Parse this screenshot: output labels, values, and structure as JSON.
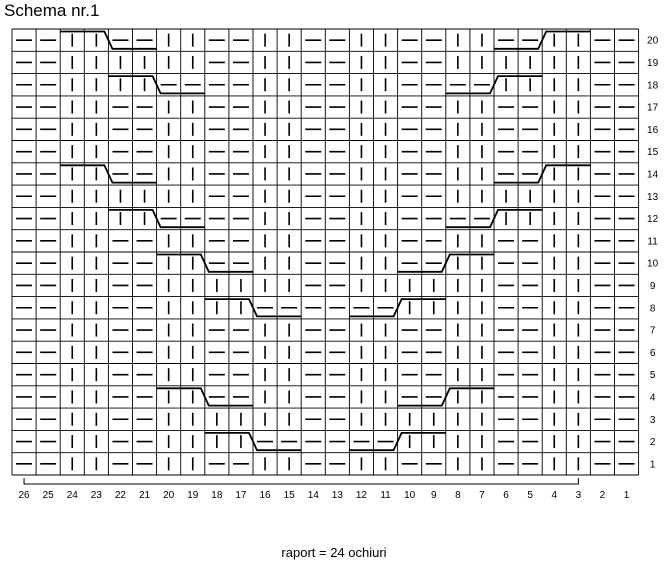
{
  "title": "Schema nr.1",
  "repeat_label": "raport = 24 ochiuri",
  "grid": {
    "columns": 26,
    "rows": 20,
    "column_numbers": [
      26,
      25,
      24,
      23,
      22,
      21,
      20,
      19,
      18,
      17,
      16,
      15,
      14,
      13,
      12,
      11,
      10,
      9,
      8,
      7,
      6,
      5,
      4,
      3,
      2,
      1
    ],
    "row_numbers": [
      20,
      19,
      18,
      17,
      16,
      15,
      14,
      13,
      12,
      11,
      10,
      9,
      8,
      7,
      6,
      5,
      4,
      3,
      2,
      1
    ],
    "repeat": {
      "from_column": 26,
      "to_column": 3
    }
  },
  "legend_symbols": {
    "knit": "|",
    "purl": "—"
  },
  "rows": [
    {
      "row": 20,
      "cells": "PPKKPPKKPPKKPPKKPPKKPPKKPP"
    },
    {
      "row": 19,
      "cells": "PPKKKKKKPPKKPPKKPPKKKKKKPP"
    },
    {
      "row": 18,
      "cells": "PPKKKKPPPPKKPPKKPPPPKKKKPP"
    },
    {
      "row": 17,
      "cells": "PPKKPPKKPPKKPPKKPPKKPPKKPP"
    },
    {
      "row": 16,
      "cells": "PPKKPPKKPPKKPPKKPPKKPPKKPP"
    },
    {
      "row": 15,
      "cells": "PPKKPPKKPPKKPPKKPPKKPPKKPP"
    },
    {
      "row": 14,
      "cells": "PPKKPPKKPPKKPPKKPPKKPPKKPP"
    },
    {
      "row": 13,
      "cells": "PPKKKKKKPPKKPPKKPPKKKKKKPP"
    },
    {
      "row": 12,
      "cells": "PPKKKKPPPPKKPPKKPPPPKKKKPP"
    },
    {
      "row": 11,
      "cells": "PPKKPPKKPPKKPPKKPPKKPPKKPP"
    },
    {
      "row": 10,
      "cells": "PPKKPPKKPPKKPPKKPPKKPPKKPP"
    },
    {
      "row": 9,
      "cells": "PPKKPPKKKKKKPPKKKKKKPPKKPP"
    },
    {
      "row": 8,
      "cells": "PPKKPPKKKKPPPPPPKKKKPPKKPP"
    },
    {
      "row": 7,
      "cells": "PPKKPPKKPPKKPPKKPPKKPPKKPP"
    },
    {
      "row": 6,
      "cells": "PPKKPPKKPPKKPPKKPPKKPPKKPP"
    },
    {
      "row": 5,
      "cells": "PPKKPPKKPPKKPPKKPPKKPPKKPP"
    },
    {
      "row": 4,
      "cells": "PPKKPPKKPPKKPPKKPPKKPPKKPP"
    },
    {
      "row": 3,
      "cells": "PPKKPPKKKKKKPPKKKKKKPPKKPP"
    },
    {
      "row": 2,
      "cells": "PPKKPPKKKKPPPPPPKKKKPPKKPP"
    },
    {
      "row": 1,
      "cells": "PPKKPPKKPPKKPPKKPPKKPPKKPP"
    }
  ],
  "cables": [
    {
      "row": 20,
      "direction": "down-right",
      "from_column": 24,
      "to_column": 21
    },
    {
      "row": 20,
      "direction": "up-right",
      "from_column": 6,
      "to_column": 3
    },
    {
      "row": 18,
      "direction": "down-right",
      "from_column": 22,
      "to_column": 19
    },
    {
      "row": 18,
      "direction": "up-right",
      "from_column": 8,
      "to_column": 5
    },
    {
      "row": 14,
      "direction": "down-right",
      "from_column": 24,
      "to_column": 21
    },
    {
      "row": 14,
      "direction": "up-right",
      "from_column": 6,
      "to_column": 3
    },
    {
      "row": 12,
      "direction": "down-right",
      "from_column": 22,
      "to_column": 19
    },
    {
      "row": 12,
      "direction": "up-right",
      "from_column": 8,
      "to_column": 5
    },
    {
      "row": 10,
      "direction": "down-right",
      "from_column": 20,
      "to_column": 17
    },
    {
      "row": 10,
      "direction": "up-right",
      "from_column": 10,
      "to_column": 7
    },
    {
      "row": 8,
      "direction": "down-right",
      "from_column": 18,
      "to_column": 15
    },
    {
      "row": 8,
      "direction": "up-right",
      "from_column": 12,
      "to_column": 9
    },
    {
      "row": 4,
      "direction": "down-right",
      "from_column": 20,
      "to_column": 17
    },
    {
      "row": 4,
      "direction": "up-right",
      "from_column": 10,
      "to_column": 7
    },
    {
      "row": 2,
      "direction": "down-right",
      "from_column": 18,
      "to_column": 15
    },
    {
      "row": 2,
      "direction": "up-right",
      "from_column": 12,
      "to_column": 9
    }
  ]
}
